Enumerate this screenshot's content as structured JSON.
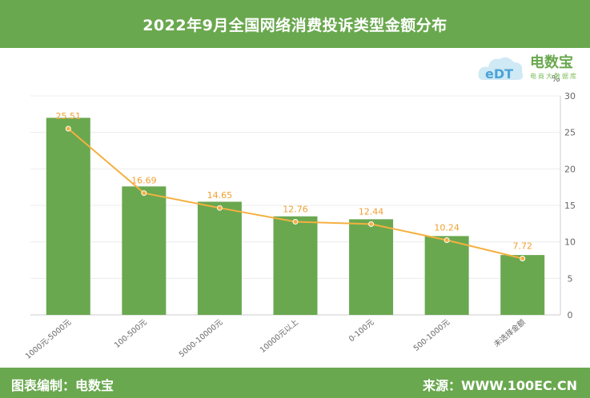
{
  "header": {
    "title": "2022年9月全国网络消费投诉类型金额分布"
  },
  "footer": {
    "left": "图表编制：电数宝",
    "right": "来源：WWW.100EC.CN"
  },
  "logo": {
    "name": "电数宝",
    "tagline": "电商大数据库",
    "mark": "eDT"
  },
  "colors": {
    "bar": "#6aa84f",
    "line": "#f5b041",
    "header": "#6aa84f"
  },
  "chart_data": {
    "type": "bar",
    "categories": [
      "1000元-5000元",
      "100-500元",
      "5000-10000元",
      "10000元以上",
      "0-100元",
      "500-1000元",
      "未选择金额"
    ],
    "series": [
      {
        "type": "bar",
        "values": [
          27.0,
          17.6,
          15.5,
          13.5,
          13.1,
          10.8,
          8.2
        ]
      },
      {
        "type": "line",
        "values": [
          25.51,
          16.69,
          14.65,
          12.76,
          12.44,
          10.24,
          7.72
        ],
        "labels": [
          "25.51",
          "16.69",
          "14.65",
          "12.76",
          "12.44",
          "10.24",
          "7.72"
        ]
      }
    ],
    "y_axis": {
      "position": "right",
      "min": 0,
      "max": 30,
      "step": 5,
      "unit": "%"
    },
    "grid": true
  }
}
